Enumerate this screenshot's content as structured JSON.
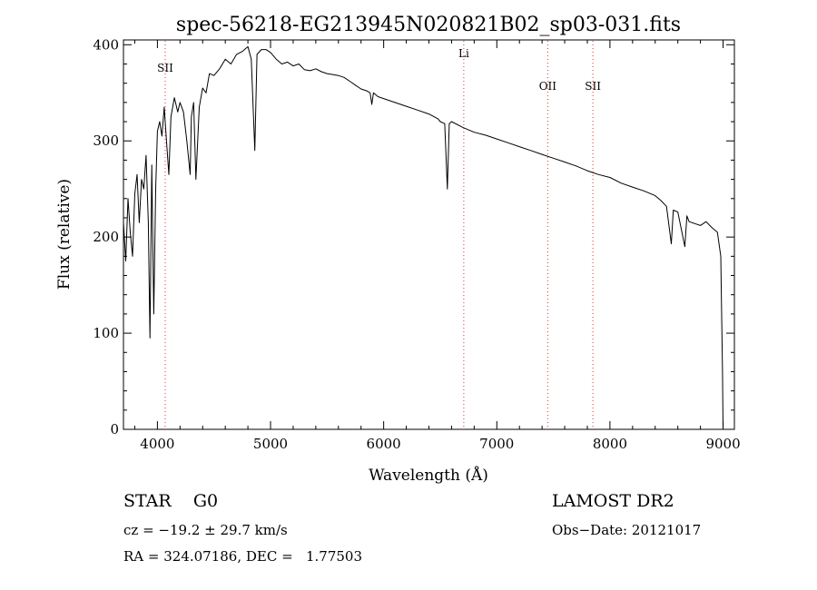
{
  "chart_data": {
    "type": "line",
    "title": "spec-56218-EG213945N020821B02_sp03-031.fits",
    "xlabel": "Wavelength (Å)",
    "ylabel": "Flux (relative)",
    "xlim": [
      3700,
      9100
    ],
    "ylim": [
      0,
      405
    ],
    "x_ticks": [
      4000,
      5000,
      6000,
      7000,
      8000,
      9000
    ],
    "y_ticks": [
      0,
      100,
      200,
      300,
      400
    ],
    "grid": false,
    "series": [
      {
        "color": "#000000",
        "x": [
          3700,
          3720,
          3740,
          3760,
          3780,
          3800,
          3820,
          3840,
          3860,
          3880,
          3900,
          3920,
          3934,
          3950,
          3968,
          3985,
          4000,
          4020,
          4040,
          4060,
          4080,
          4101,
          4120,
          4150,
          4180,
          4200,
          4230,
          4260,
          4290,
          4300,
          4320,
          4340,
          4370,
          4400,
          4430,
          4460,
          4500,
          4550,
          4600,
          4650,
          4700,
          4750,
          4800,
          4830,
          4861,
          4880,
          4920,
          4960,
          5000,
          5050,
          5100,
          5150,
          5200,
          5250,
          5300,
          5350,
          5400,
          5450,
          5500,
          5550,
          5600,
          5650,
          5700,
          5750,
          5800,
          5850,
          5880,
          5895,
          5910,
          5950,
          6000,
          6100,
          6200,
          6300,
          6400,
          6480,
          6500,
          6540,
          6563,
          6580,
          6600,
          6700,
          6800,
          6900,
          7000,
          7100,
          7200,
          7300,
          7400,
          7500,
          7600,
          7700,
          7800,
          7900,
          8000,
          8100,
          8200,
          8300,
          8400,
          8450,
          8500,
          8542,
          8560,
          8600,
          8662,
          8680,
          8700,
          8750,
          8800,
          8850,
          8900,
          8950,
          8980,
          8995,
          9000
        ],
        "y": [
          215,
          175,
          240,
          205,
          180,
          245,
          265,
          215,
          260,
          250,
          285,
          215,
          95,
          275,
          120,
          250,
          310,
          320,
          305,
          335,
          300,
          265,
          325,
          345,
          330,
          340,
          330,
          300,
          265,
          325,
          340,
          260,
          335,
          355,
          350,
          370,
          368,
          375,
          385,
          380,
          390,
          393,
          398,
          385,
          290,
          390,
          395,
          395,
          392,
          385,
          380,
          382,
          378,
          380,
          374,
          373,
          375,
          372,
          370,
          369,
          368,
          366,
          362,
          358,
          354,
          352,
          350,
          338,
          350,
          346,
          344,
          340,
          336,
          332,
          328,
          323,
          320,
          318,
          250,
          318,
          320,
          314,
          309,
          306,
          302,
          298,
          294,
          290,
          286,
          282,
          278,
          274,
          269,
          265,
          262,
          256,
          252,
          248,
          243,
          238,
          232,
          193,
          228,
          226,
          190,
          222,
          216,
          214,
          212,
          216,
          210,
          205,
          180,
          60,
          0
        ]
      }
    ],
    "annotations": [
      {
        "label": "SII",
        "x": 4069,
        "label_y": 372
      },
      {
        "label": "Li",
        "x": 6708,
        "label_y": 387
      },
      {
        "label": "OII",
        "x": 7450,
        "label_y": 353
      },
      {
        "label": "SII",
        "x": 7849,
        "label_y": 353
      }
    ]
  },
  "info": {
    "class_line": "STAR    G0",
    "cz_line": "cz = −19.2 ± 29.7 km/s",
    "coords_line": "RA = 324.07186, DEC =   1.77503",
    "survey": "LAMOST DR2",
    "obs_date": "Obs−Date: 20121017"
  }
}
